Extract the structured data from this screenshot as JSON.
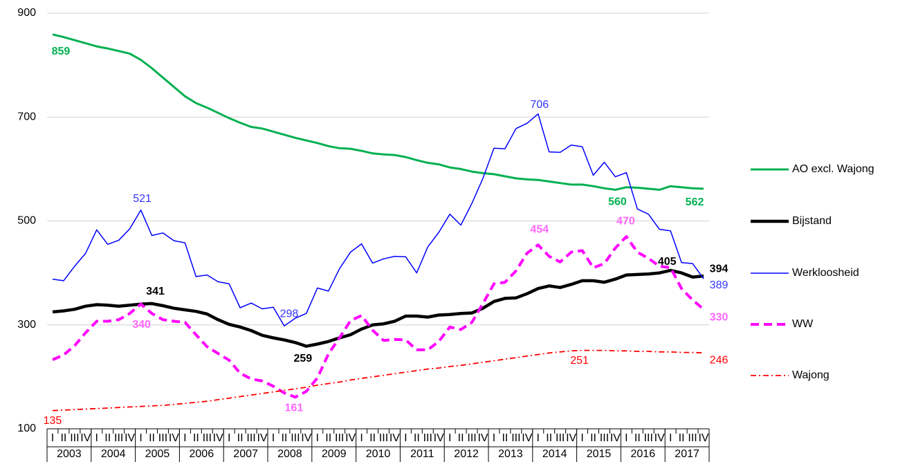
{
  "chart_data": {
    "type": "line",
    "categories": [
      "I",
      "II",
      "III",
      "IV",
      "I",
      "II",
      "III",
      "IV",
      "I",
      "II",
      "III",
      "IV",
      "I",
      "II",
      "III",
      "IV",
      "I",
      "II",
      "III",
      "IV",
      "I",
      "II",
      "III",
      "IV",
      "I",
      "II",
      "III",
      "IV",
      "I",
      "II",
      "III",
      "IV",
      "I",
      "II",
      "III",
      "IV",
      "I",
      "II",
      "III",
      "IV",
      "I",
      "II",
      "III",
      "IV",
      "I",
      "II",
      "III",
      "IV",
      "I",
      "II",
      "III",
      "IV",
      "I",
      "II",
      "III",
      "IV",
      "I",
      "II",
      "III",
      "IV"
    ],
    "years": [
      "2003",
      "2004",
      "2005",
      "2006",
      "2007",
      "2008",
      "2009",
      "2010",
      "2011",
      "2012",
      "2013",
      "2014",
      "2015",
      "2016",
      "2017"
    ],
    "ylim": [
      100,
      900
    ],
    "yticks": [
      100,
      300,
      500,
      700,
      900
    ],
    "grid": true,
    "legend": "right",
    "series": [
      {
        "name": "AO excl. Wajong",
        "color": "#00b050",
        "style": "solid",
        "label_color": "#00b050",
        "label_points": [
          0,
          51,
          59
        ],
        "values": [
          859,
          854,
          848,
          842,
          836,
          832,
          827,
          822,
          810,
          794,
          776,
          758,
          740,
          727,
          718,
          708,
          698,
          689,
          681,
          678,
          672,
          666,
          660,
          655,
          650,
          644,
          640,
          639,
          635,
          630,
          628,
          627,
          623,
          617,
          612,
          609,
          603,
          600,
          595,
          592,
          590,
          586,
          582,
          580,
          579,
          576,
          573,
          570,
          570,
          567,
          563,
          560,
          565,
          564,
          562,
          560,
          567,
          565,
          563,
          562
        ]
      },
      {
        "name": "Bijstand",
        "color": "#000000",
        "style": "solid",
        "label_color": "#000000",
        "label_points": [
          9,
          23,
          56,
          59
        ],
        "values": [
          325,
          327,
          330,
          336,
          339,
          338,
          336,
          338,
          340,
          341,
          337,
          332,
          329,
          326,
          321,
          310,
          301,
          296,
          289,
          280,
          275,
          271,
          266,
          259,
          263,
          268,
          275,
          281,
          292,
          300,
          302,
          307,
          317,
          317,
          315,
          319,
          320,
          322,
          323,
          332,
          345,
          351,
          352,
          360,
          370,
          375,
          372,
          378,
          385,
          385,
          382,
          388,
          396,
          397,
          398,
          400,
          405,
          400,
          392,
          394
        ]
      },
      {
        "name": "Werkloosheid",
        "color": "#0000ff",
        "style": "thin",
        "label_color": "#3333ff",
        "label_points": [
          8,
          21,
          44,
          59
        ],
        "values": [
          388,
          385,
          413,
          438,
          483,
          455,
          463,
          485,
          521,
          472,
          477,
          462,
          458,
          393,
          396,
          383,
          379,
          333,
          342,
          331,
          334,
          298,
          313,
          322,
          371,
          365,
          408,
          440,
          456,
          419,
          427,
          432,
          431,
          400,
          450,
          478,
          513,
          492,
          534,
          582,
          640,
          639,
          678,
          688,
          706,
          633,
          632,
          646,
          643,
          588,
          613,
          585,
          593,
          523,
          513,
          484,
          481,
          420,
          418,
          389
        ]
      },
      {
        "name": "WW",
        "color": "#ff00ff",
        "style": "dashed",
        "label_color": "#ff66ff",
        "label_points": [
          8,
          22,
          44,
          52,
          59
        ],
        "values": [
          233,
          242,
          260,
          285,
          307,
          307,
          310,
          322,
          340,
          322,
          310,
          307,
          305,
          281,
          258,
          245,
          232,
          207,
          196,
          192,
          182,
          169,
          161,
          172,
          198,
          244,
          275,
          308,
          318,
          290,
          270,
          272,
          271,
          252,
          252,
          268,
          296,
          291,
          305,
          341,
          379,
          382,
          404,
          438,
          454,
          432,
          421,
          440,
          443,
          410,
          418,
          448,
          470,
          440,
          428,
          413,
          410,
          370,
          348,
          330
        ]
      },
      {
        "name": "Wajong",
        "color": "#ff0000",
        "style": "dashdot",
        "label_color": "#ff0000",
        "label_points": [
          0,
          48,
          59
        ],
        "values": [
          135,
          136,
          137,
          138,
          139,
          140,
          141,
          142,
          143,
          144,
          145,
          147,
          149,
          151,
          153,
          156,
          159,
          162,
          165,
          168,
          171,
          174,
          177,
          180,
          184,
          187,
          190,
          194,
          197,
          200,
          203,
          206,
          209,
          212,
          215,
          217,
          220,
          222,
          225,
          228,
          231,
          234,
          237,
          240,
          243,
          246,
          248,
          250,
          251,
          251,
          251,
          250,
          250,
          249,
          249,
          248,
          248,
          247,
          247,
          246
        ]
      }
    ]
  }
}
